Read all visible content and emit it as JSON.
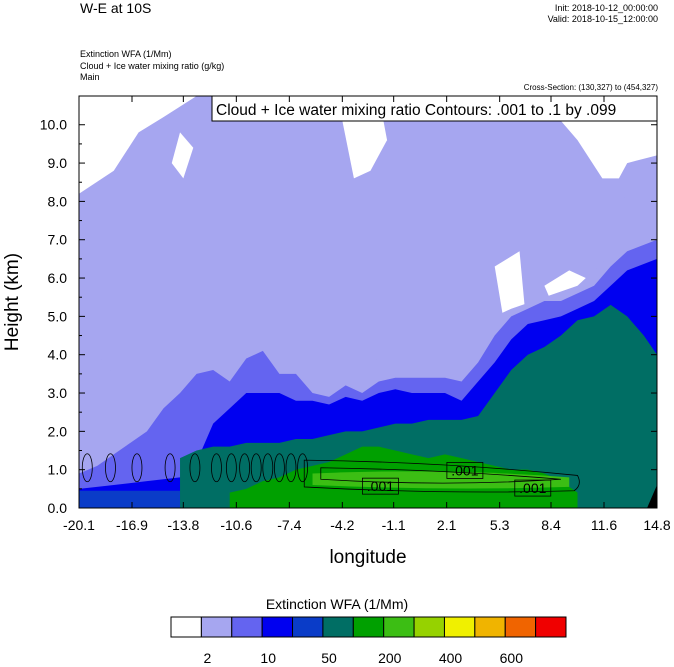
{
  "header": {
    "title": "W-E at 10S",
    "init": "Init: 2018-10-12_00:00:00",
    "valid": "Valid: 2018-10-15_12:00:00",
    "subtitle_lines": [
      "Extinction WFA   (1/Mm)",
      "Cloud + Ice water mixing ratio   (g/kg)",
      "Main"
    ],
    "cross_section": "Cross-Section: (130,327) to (454,327)"
  },
  "chart_data": {
    "type": "heatmap",
    "title": "W-E at 10S",
    "xlabel": "longitude",
    "ylabel": "Height (km)",
    "x_ticks": [
      "-20.1",
      "-16.9",
      "-13.8",
      "-10.6",
      "-7.4",
      "-4.2",
      "-1.1",
      "2.1",
      "5.3",
      "8.4",
      "11.6",
      "14.8"
    ],
    "x_tick_values": [
      -20.1,
      -16.9,
      -13.8,
      -10.6,
      -7.4,
      -4.2,
      -1.1,
      2.1,
      5.3,
      8.4,
      11.6,
      14.8
    ],
    "y_ticks": [
      "0.0",
      "1.0",
      "2.0",
      "3.0",
      "4.0",
      "5.0",
      "6.0",
      "7.0",
      "8.0",
      "9.0",
      "10.0"
    ],
    "y_tick_values": [
      0,
      1,
      2,
      3,
      4,
      5,
      6,
      7,
      8,
      9,
      10
    ],
    "xlim": [
      -20.1,
      14.8
    ],
    "ylim": [
      0,
      10.75
    ],
    "contour_box_text": "Cloud + Ice water mixing ratio Contours: .001 to .1 by .099",
    "contour_labels": [
      {
        "text": ".001",
        "x": 3.2,
        "y": 0.98
      },
      {
        "text": ".001",
        "x": -1.9,
        "y": 0.57
      },
      {
        "text": ".001",
        "x": 7.3,
        "y": 0.52
      }
    ],
    "colorbar": {
      "title": "Extinction WFA  (1/Mm)",
      "colors": [
        "#ffffff",
        "#a6a6f0",
        "#6464f0",
        "#0000f0",
        "#0a3cc8",
        "#006e64",
        "#00a000",
        "#3cbe14",
        "#96d200",
        "#f0f000",
        "#f0b400",
        "#f06400",
        "#f00000"
      ],
      "labels": [
        "2",
        "10",
        "50",
        "200",
        "400",
        "600"
      ],
      "label_edges": [
        1,
        3,
        5,
        7,
        9,
        11
      ]
    },
    "fields": {
      "upper_lightblue_top": [
        [
          -20.1,
          8.2
        ],
        [
          -18,
          8.8
        ],
        [
          -16.5,
          9.8
        ],
        [
          -15,
          10.2
        ],
        [
          -13,
          10.75
        ],
        [
          -5,
          10.75
        ],
        [
          3,
          10.75
        ],
        [
          8,
          10.6
        ],
        [
          10,
          9.6
        ],
        [
          11.5,
          8.6
        ],
        [
          12.5,
          8.6
        ],
        [
          13,
          9.0
        ],
        [
          14.8,
          9.2
        ]
      ],
      "mid_lightblue_top": [
        [
          -20.1,
          4.2
        ],
        [
          -19,
          4.0
        ],
        [
          -18,
          3.5
        ],
        [
          -17,
          3.4
        ],
        [
          -16,
          3.2
        ],
        [
          -14,
          3.0
        ],
        [
          -12,
          2.9
        ],
        [
          -10,
          2.8
        ],
        [
          -8,
          2.7
        ],
        [
          -6,
          3.1
        ],
        [
          -4,
          3.5
        ],
        [
          -2,
          3.9
        ],
        [
          0,
          4.3
        ],
        [
          2,
          4.6
        ],
        [
          4,
          4.8
        ],
        [
          6,
          5.2
        ],
        [
          8,
          5.5
        ],
        [
          10,
          5.8
        ],
        [
          12,
          6.6
        ],
        [
          13,
          8.4
        ],
        [
          14.8,
          8.6
        ]
      ],
      "blue_top": [
        [
          -20.1,
          0.9
        ],
        [
          -19,
          1.1
        ],
        [
          -18,
          1.4
        ],
        [
          -17,
          1.7
        ],
        [
          -16,
          2.0
        ],
        [
          -15,
          2.6
        ],
        [
          -14,
          3.0
        ],
        [
          -13,
          3.5
        ],
        [
          -12,
          3.6
        ],
        [
          -11,
          3.3
        ],
        [
          -10,
          3.9
        ],
        [
          -9,
          4.1
        ],
        [
          -8,
          3.5
        ],
        [
          -7,
          3.5
        ],
        [
          -6,
          3.0
        ],
        [
          -5,
          2.9
        ],
        [
          -4,
          3.2
        ],
        [
          -3,
          3.0
        ],
        [
          -2,
          3.3
        ],
        [
          -1,
          3.4
        ],
        [
          0,
          3.4
        ],
        [
          1,
          3.4
        ],
        [
          2,
          3.4
        ],
        [
          3,
          3.3
        ],
        [
          4,
          3.8
        ],
        [
          5,
          4.5
        ],
        [
          6,
          5.0
        ],
        [
          7,
          5.2
        ],
        [
          8,
          5.4
        ],
        [
          9,
          5.4
        ],
        [
          10,
          5.6
        ],
        [
          11,
          5.8
        ],
        [
          12,
          6.3
        ],
        [
          13,
          6.7
        ],
        [
          14.8,
          7.0
        ]
      ],
      "dark_blue_top": [
        [
          -20.1,
          0.5
        ],
        [
          -18,
          0.6
        ],
        [
          -16,
          0.7
        ],
        [
          -14,
          0.8
        ],
        [
          -13,
          1.2
        ],
        [
          -12,
          2.2
        ],
        [
          -11,
          2.6
        ],
        [
          -10,
          3.0
        ],
        [
          -9,
          3.0
        ],
        [
          -8,
          3.0
        ],
        [
          -7,
          2.8
        ],
        [
          -6,
          2.8
        ],
        [
          -5,
          2.7
        ],
        [
          -4,
          2.9
        ],
        [
          -3,
          2.8
        ],
        [
          -2,
          3.0
        ],
        [
          -1,
          3.1
        ],
        [
          0,
          3.0
        ],
        [
          1,
          3.0
        ],
        [
          2,
          3.0
        ],
        [
          3,
          2.8
        ],
        [
          4,
          3.3
        ],
        [
          5,
          3.8
        ],
        [
          6,
          4.4
        ],
        [
          7,
          4.8
        ],
        [
          8,
          4.9
        ],
        [
          9,
          5.0
        ],
        [
          10,
          5.2
        ],
        [
          11,
          5.4
        ],
        [
          12,
          5.8
        ],
        [
          13,
          6.2
        ],
        [
          14.8,
          6.5
        ]
      ],
      "teal_top": [
        [
          -14,
          1.3
        ],
        [
          -13,
          1.5
        ],
        [
          -12,
          1.6
        ],
        [
          -11,
          1.6
        ],
        [
          -10,
          1.7
        ],
        [
          -9,
          1.7
        ],
        [
          -8,
          1.7
        ],
        [
          -7,
          1.8
        ],
        [
          -6,
          1.8
        ],
        [
          -5,
          1.9
        ],
        [
          -4,
          2.0
        ],
        [
          -3,
          2.0
        ],
        [
          -2,
          2.1
        ],
        [
          -1,
          2.2
        ],
        [
          0,
          2.2
        ],
        [
          1,
          2.3
        ],
        [
          2,
          2.3
        ],
        [
          3,
          2.3
        ],
        [
          4,
          2.4
        ],
        [
          5,
          3.0
        ],
        [
          6,
          3.6
        ],
        [
          7,
          4.0
        ],
        [
          8,
          4.2
        ],
        [
          9,
          4.5
        ],
        [
          10,
          4.9
        ],
        [
          11,
          5.0
        ],
        [
          12,
          5.3
        ],
        [
          13,
          5.0
        ],
        [
          14,
          4.5
        ],
        [
          14.8,
          4.0
        ]
      ],
      "green_top": [
        [
          -11,
          0.4
        ],
        [
          -10,
          0.5
        ],
        [
          -9,
          0.7
        ],
        [
          -8,
          0.8
        ],
        [
          -7,
          1.0
        ],
        [
          -6,
          1.1
        ],
        [
          -5,
          1.2
        ],
        [
          -4,
          1.4
        ],
        [
          -3,
          1.6
        ],
        [
          -2,
          1.6
        ],
        [
          -1,
          1.5
        ],
        [
          0,
          1.4
        ],
        [
          1,
          1.3
        ],
        [
          2,
          1.4
        ],
        [
          3,
          1.3
        ],
        [
          4,
          1.2
        ],
        [
          5,
          1.1
        ],
        [
          6,
          1.0
        ],
        [
          7,
          1.0
        ],
        [
          8,
          0.9
        ],
        [
          9,
          0.7
        ],
        [
          10,
          0.4
        ]
      ],
      "white_gaps": [
        [
          [
            -4.5,
            10.75
          ],
          [
            -2,
            10.75
          ],
          [
            -1.5,
            9.6
          ],
          [
            -2.5,
            8.8
          ],
          [
            -3.5,
            8.6
          ]
        ],
        [
          [
            8,
            5.8
          ],
          [
            9.5,
            6.2
          ],
          [
            10.5,
            6.0
          ],
          [
            10,
            4.8
          ],
          [
            9,
            4.9
          ],
          [
            8.5,
            5.3
          ]
        ],
        [
          [
            5,
            6.3
          ],
          [
            6.5,
            6.7
          ],
          [
            6.8,
            5.3
          ],
          [
            5.5,
            5.0
          ]
        ],
        [
          [
            -14,
            9.8
          ],
          [
            -13.2,
            9.4
          ],
          [
            -13.8,
            8.6
          ],
          [
            -14.5,
            9.0
          ]
        ]
      ],
      "contour_cells_x": [
        -19.6,
        -18.2,
        -16.6,
        -14.6,
        -13.1,
        -11.8,
        -10.9,
        -10.1,
        -9.4,
        -8.7,
        -8.0,
        -7.3,
        -6.6
      ]
    }
  }
}
